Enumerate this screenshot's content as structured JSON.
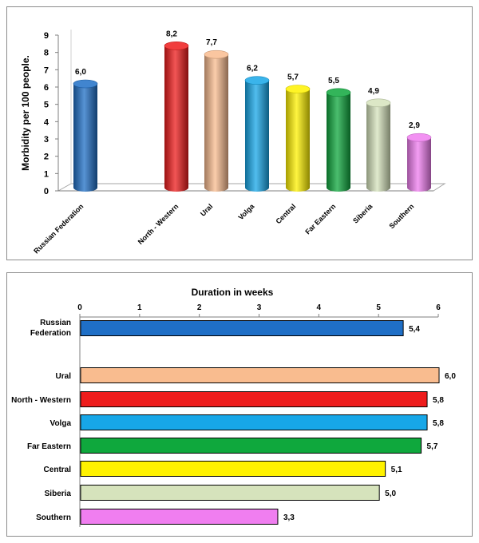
{
  "chart_data": [
    {
      "type": "bar",
      "orientation": "vertical",
      "style": "3d-cylinder",
      "ylabel": "Morbidity per 100 people.",
      "ylim": [
        0,
        9
      ],
      "yticks": [
        "0",
        "1",
        "2",
        "3",
        "4",
        "5",
        "6",
        "7",
        "8",
        "9"
      ],
      "grid": false,
      "categories": [
        "Russian Federation",
        "North - Western",
        "Ural",
        "Volga",
        "Central",
        "Far Eastern",
        "Siberia",
        "Southern"
      ],
      "values": [
        6.0,
        8.2,
        7.7,
        6.2,
        5.7,
        5.5,
        4.9,
        2.9
      ],
      "value_labels": [
        "6,0",
        "8,2",
        "7,7",
        "6,2",
        "5,7",
        "5,5",
        "4,9",
        "2,9"
      ],
      "colors": [
        "#1f6fc6",
        "#ee1c1c",
        "#f9bc8f",
        "#17a7e8",
        "#fff200",
        "#0fa83d",
        "#d6e3bc",
        "#f07ef0"
      ]
    },
    {
      "type": "bar",
      "orientation": "horizontal",
      "title": "Duration in weeks",
      "xlim": [
        0,
        6
      ],
      "xticks": [
        "0",
        "1",
        "2",
        "3",
        "4",
        "5",
        "6"
      ],
      "grid": false,
      "categories": [
        "Russian Federation",
        "Ural",
        "North - Western",
        "Volga",
        "Far Eastern",
        "Central",
        "Siberia",
        "Southern"
      ],
      "values": [
        5.4,
        6.0,
        5.8,
        5.8,
        5.7,
        5.1,
        5.0,
        3.3
      ],
      "value_labels": [
        "5,4",
        "6,0",
        "5,8",
        "5,8",
        "5,7",
        "5,1",
        "5,0",
        "3,3"
      ],
      "colors": [
        "#1f6fc6",
        "#f9bc8f",
        "#ee1c1c",
        "#17a7e8",
        "#0fa83d",
        "#fff200",
        "#d6e3bc",
        "#f07ef0"
      ]
    }
  ]
}
